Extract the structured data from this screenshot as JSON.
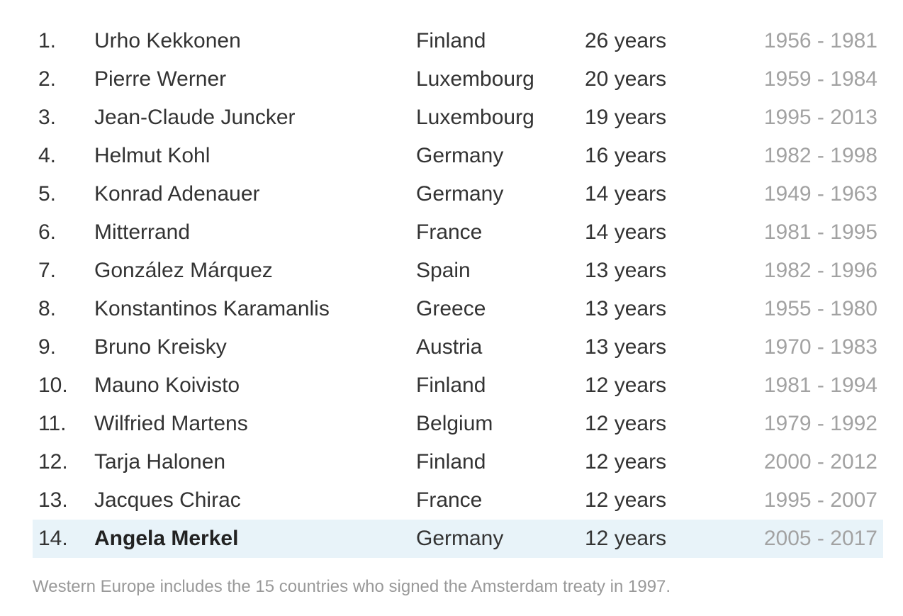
{
  "rows": [
    {
      "rank": "1.",
      "name": "Urho Kekkonen",
      "country": "Finland",
      "years": "26 years",
      "term": "1956 - 1981"
    },
    {
      "rank": "2.",
      "name": "Pierre Werner",
      "country": "Luxembourg",
      "years": "20 years",
      "term": "1959 - 1984"
    },
    {
      "rank": "3.",
      "name": "Jean-Claude Juncker",
      "country": "Luxembourg",
      "years": "19 years",
      "term": "1995 - 2013"
    },
    {
      "rank": "4.",
      "name": "Helmut Kohl",
      "country": "Germany",
      "years": "16 years",
      "term": "1982 - 1998"
    },
    {
      "rank": "5.",
      "name": "Konrad Adenauer",
      "country": "Germany",
      "years": "14 years",
      "term": "1949 - 1963"
    },
    {
      "rank": "6.",
      "name": "Mitterrand",
      "country": "France",
      "years": "14 years",
      "term": "1981 - 1995"
    },
    {
      "rank": "7.",
      "name": "González Márquez",
      "country": "Spain",
      "years": "13 years",
      "term": "1982 - 1996"
    },
    {
      "rank": "8.",
      "name": "Konstantinos Karamanlis",
      "country": "Greece",
      "years": "13 years",
      "term": "1955 - 1980"
    },
    {
      "rank": "9.",
      "name": "Bruno Kreisky",
      "country": "Austria",
      "years": "13 years",
      "term": "1970 - 1983"
    },
    {
      "rank": "10.",
      "name": "Mauno Koivisto",
      "country": "Finland",
      "years": "12 years",
      "term": "1981 - 1994"
    },
    {
      "rank": "11.",
      "name": "Wilfried Martens",
      "country": "Belgium",
      "years": "12 years",
      "term": "1979 - 1992"
    },
    {
      "rank": "12.",
      "name": "Tarja Halonen",
      "country": "Finland",
      "years": "12 years",
      "term": "2000 - 2012"
    },
    {
      "rank": "13.",
      "name": "Jacques Chirac",
      "country": "France",
      "years": "12 years",
      "term": "1995 - 2007"
    },
    {
      "rank": "14.",
      "name": "Angela Merkel",
      "country": "Germany",
      "years": "12 years",
      "term": "2005 - 2017",
      "highlighted": true
    }
  ],
  "footnote": "Western Europe includes the 15 countries who signed the Amsterdam treaty in 1997.",
  "colors": {
    "text": "#333333",
    "term_text": "#a2a2a2",
    "highlight_background": "#e8f3f9",
    "footnote_text": "#999999"
  }
}
